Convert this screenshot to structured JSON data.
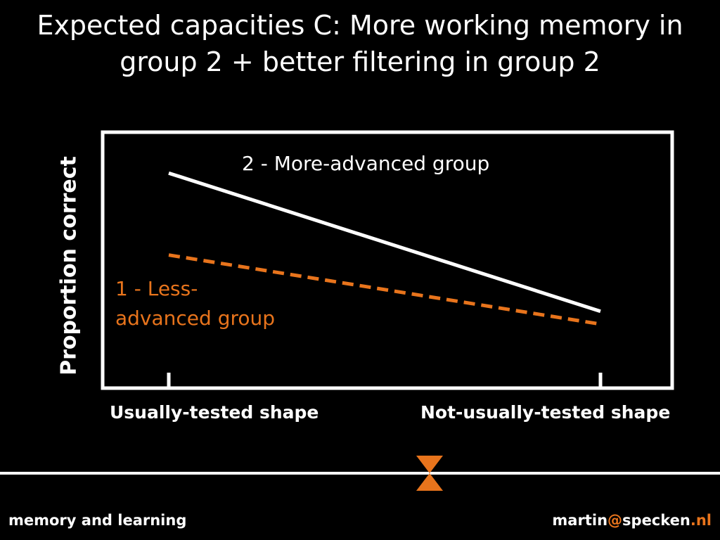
{
  "slide": {
    "title_line1": "Expected capacities C: More working memory in",
    "title_line2": "group 2 + better filtering in group 2"
  },
  "chart_data": {
    "type": "line",
    "ylabel": "Proportion correct",
    "categories": [
      "Usually-tested shape",
      "Not-usually-tested shape"
    ],
    "series": [
      {
        "name": "2 - More-advanced group",
        "values": [
          0.84,
          0.3
        ],
        "color": "#ffffff",
        "style": "solid"
      },
      {
        "name": "1 - Less-advanced group",
        "values": [
          0.52,
          0.25
        ],
        "color": "#e8741c",
        "style": "dashed"
      }
    ],
    "ylim": [
      0,
      1
    ],
    "grid": false,
    "series_label_lines": {
      "group1_line1": "1 - Less-",
      "group1_line2": "advanced group"
    }
  },
  "footer": {
    "left_text": "memory and learning",
    "email_user": "martin",
    "email_at": "@",
    "email_domain": "specken",
    "email_dot": ".",
    "email_tld": "nl"
  },
  "colors": {
    "background": "#000000",
    "text": "#ffffff",
    "accent": "#e8741c"
  },
  "icons": {
    "divider_marker": "hourglass-icon"
  }
}
